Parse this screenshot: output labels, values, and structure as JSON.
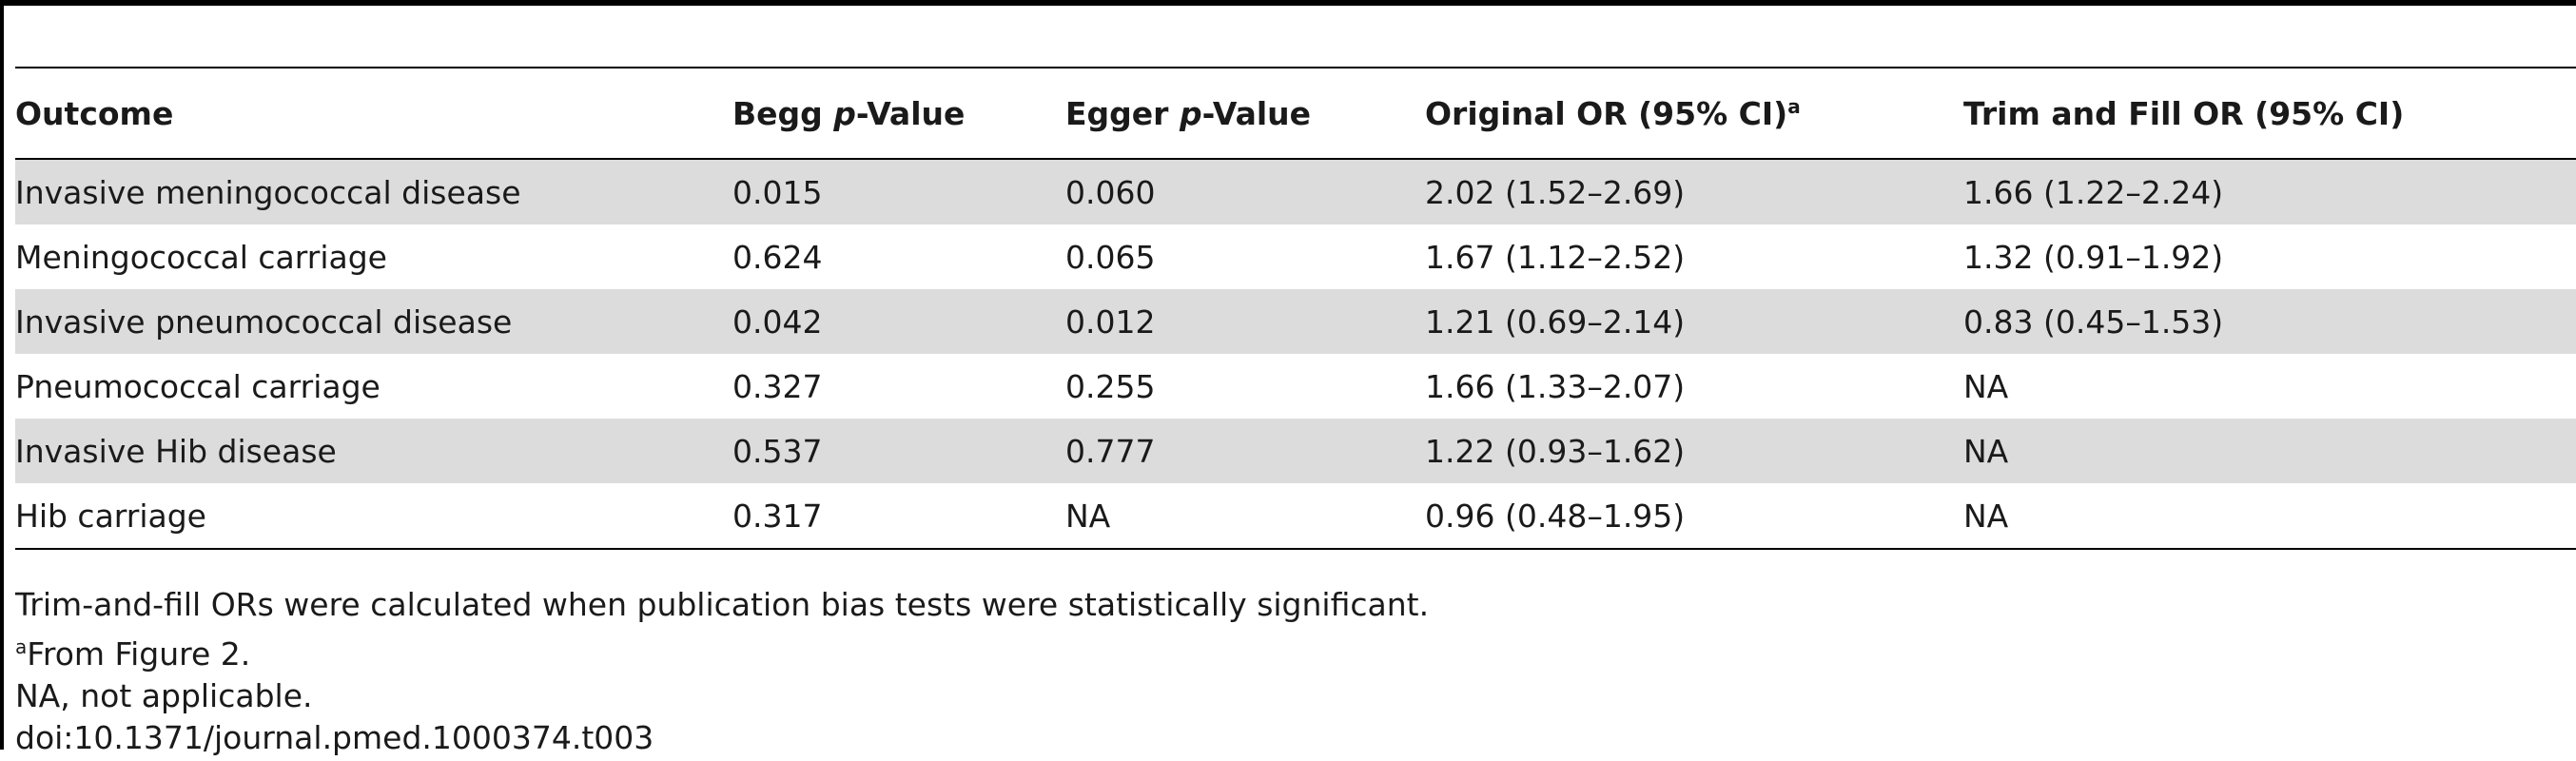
{
  "table": {
    "headers": {
      "outcome": "Outcome",
      "begg_prefix": "Begg ",
      "begg_p": "p",
      "begg_suffix": "-Value",
      "egger_prefix": "Egger ",
      "egger_p": "p",
      "egger_suffix": "-Value",
      "original_or": "Original OR (95% CI)",
      "original_or_note": "a",
      "trim_fill_or": "Trim and Fill OR (95% CI)"
    },
    "rows": [
      {
        "outcome": "Invasive meningococcal disease",
        "begg": "0.015",
        "egger": "0.060",
        "original_or": "2.02 (1.52–2.69)",
        "trim_fill_or": "1.66 (1.22–2.24)"
      },
      {
        "outcome": "Meningococcal carriage",
        "begg": "0.624",
        "egger": "0.065",
        "original_or": "1.67 (1.12–2.52)",
        "trim_fill_or": "1.32 (0.91–1.92)"
      },
      {
        "outcome": "Invasive pneumococcal disease",
        "begg": "0.042",
        "egger": "0.012",
        "original_or": "1.21 (0.69–2.14)",
        "trim_fill_or": "0.83 (0.45–1.53)"
      },
      {
        "outcome": "Pneumococcal carriage",
        "begg": "0.327",
        "egger": "0.255",
        "original_or": "1.66 (1.33–2.07)",
        "trim_fill_or": "NA"
      },
      {
        "outcome": "Invasive Hib disease",
        "begg": "0.537",
        "egger": "0.777",
        "original_or": "1.22 (0.93–1.62)",
        "trim_fill_or": "NA"
      },
      {
        "outcome": "Hib carriage",
        "begg": "0.317",
        "egger": "NA",
        "original_or": "0.96 (0.48–1.95)",
        "trim_fill_or": "NA"
      }
    ]
  },
  "footnotes": {
    "line1": "Trim-and-fill ORs were calculated when publication bias tests were statistically significant.",
    "line2_mark": "a",
    "line2_text": "From Figure 2.",
    "line3": "NA, not applicable.",
    "doi": "doi:10.1371/journal.pmed.1000374.t003"
  },
  "colors": {
    "shaded_row": "#dcdcdc",
    "rule": "#000000"
  }
}
